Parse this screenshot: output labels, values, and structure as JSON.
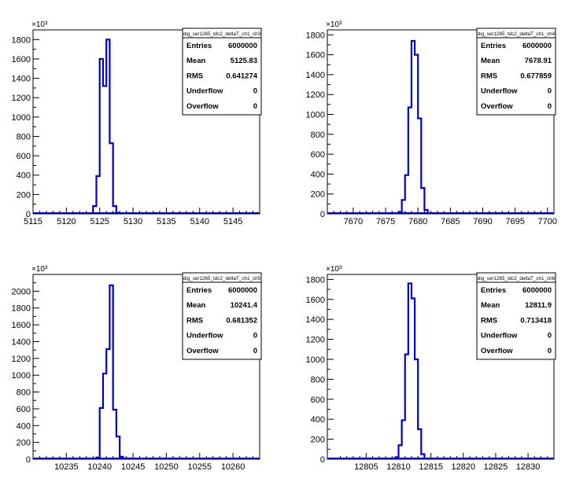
{
  "chart_data": [
    {
      "type": "bar",
      "title": "dig_ser1265_tdc2_deltaT_ch1_ch3",
      "exponent_label": "×10³",
      "xlim": [
        5115,
        5149
      ],
      "ylim": [
        0,
        1900
      ],
      "xticks": [
        5115,
        5120,
        5125,
        5130,
        5135,
        5140,
        5145
      ],
      "yticks": [
        0,
        200,
        400,
        600,
        800,
        1000,
        1200,
        1400,
        1600,
        1800
      ],
      "bins": [
        {
          "x": 5124.0,
          "y": 80
        },
        {
          "x": 5124.5,
          "y": 390
        },
        {
          "x": 5125.0,
          "y": 1600
        },
        {
          "x": 5125.5,
          "y": 1320
        },
        {
          "x": 5126.0,
          "y": 1800
        },
        {
          "x": 5126.5,
          "y": 730
        },
        {
          "x": 5127.0,
          "y": 80
        },
        {
          "x": 5127.5,
          "y": 10
        }
      ],
      "stats": [
        {
          "label": "Entries",
          "value": "6000000"
        },
        {
          "label": "Mean",
          "value": "5125.83"
        },
        {
          "label": "RMS",
          "value": "0.641274"
        },
        {
          "label": "Underflow",
          "value": "0"
        },
        {
          "label": "Overflow",
          "value": "0"
        }
      ]
    },
    {
      "type": "bar",
      "title": "dig_ser1265_tdc2_deltaT_ch1_ch4",
      "exponent_label": "×10³",
      "xlim": [
        7666,
        7701
      ],
      "ylim": [
        0,
        1850
      ],
      "xticks": [
        7670,
        7675,
        7680,
        7685,
        7690,
        7695,
        7700
      ],
      "yticks": [
        0,
        200,
        400,
        600,
        800,
        1000,
        1200,
        1400,
        1600,
        1800
      ],
      "bins": [
        {
          "x": 7677.0,
          "y": 20
        },
        {
          "x": 7677.5,
          "y": 140
        },
        {
          "x": 7678.0,
          "y": 390
        },
        {
          "x": 7678.5,
          "y": 1070
        },
        {
          "x": 7679.0,
          "y": 1740
        },
        {
          "x": 7679.5,
          "y": 1600
        },
        {
          "x": 7680.0,
          "y": 960
        },
        {
          "x": 7680.5,
          "y": 260
        },
        {
          "x": 7681.0,
          "y": 40
        }
      ],
      "stats": [
        {
          "label": "Entries",
          "value": "6000000"
        },
        {
          "label": "Mean",
          "value": "7678.91"
        },
        {
          "label": "RMS",
          "value": "0.677859"
        },
        {
          "label": "Underflow",
          "value": "0"
        },
        {
          "label": "Overflow",
          "value": "0"
        }
      ]
    },
    {
      "type": "bar",
      "title": "dig_ser1265_tdc2_deltaT_ch1_ch5",
      "exponent_label": "×10³",
      "xlim": [
        10230,
        10264
      ],
      "ylim": [
        0,
        2200
      ],
      "xticks": [
        10235,
        10240,
        10245,
        10250,
        10255,
        10260
      ],
      "yticks": [
        0,
        200,
        400,
        600,
        800,
        1000,
        1200,
        1400,
        1600,
        1800,
        2000
      ],
      "bins": [
        {
          "x": 10239.5,
          "y": 20
        },
        {
          "x": 10240.0,
          "y": 610
        },
        {
          "x": 10240.5,
          "y": 1020
        },
        {
          "x": 10241.0,
          "y": 1310
        },
        {
          "x": 10241.5,
          "y": 2070
        },
        {
          "x": 10242.0,
          "y": 590
        },
        {
          "x": 10242.5,
          "y": 270
        },
        {
          "x": 10243.0,
          "y": 30
        }
      ],
      "stats": [
        {
          "label": "Entries",
          "value": "6000000"
        },
        {
          "label": "Mean",
          "value": "10241.4"
        },
        {
          "label": "RMS",
          "value": "0.681352"
        },
        {
          "label": "Underflow",
          "value": "0"
        },
        {
          "label": "Overflow",
          "value": "0"
        }
      ]
    },
    {
      "type": "bar",
      "title": "dig_ser1265_tdc2_deltaT_ch1_ch6",
      "exponent_label": "×10³",
      "xlim": [
        12799,
        12834
      ],
      "ylim": [
        0,
        1850
      ],
      "xticks": [
        12805,
        12810,
        12815,
        12820,
        12825,
        12830
      ],
      "yticks": [
        0,
        200,
        400,
        600,
        800,
        1000,
        1200,
        1400,
        1600,
        1800
      ],
      "bins": [
        {
          "x": 12809.5,
          "y": 20
        },
        {
          "x": 12810.0,
          "y": 140
        },
        {
          "x": 12810.5,
          "y": 390
        },
        {
          "x": 12811.0,
          "y": 1050
        },
        {
          "x": 12811.5,
          "y": 1760
        },
        {
          "x": 12812.0,
          "y": 1610
        },
        {
          "x": 12812.5,
          "y": 1000
        },
        {
          "x": 12813.0,
          "y": 300
        },
        {
          "x": 12813.5,
          "y": 50
        }
      ],
      "stats": [
        {
          "label": "Entries",
          "value": "6000000"
        },
        {
          "label": "Mean",
          "value": "12811.9"
        },
        {
          "label": "RMS",
          "value": "0.713418"
        },
        {
          "label": "Underflow",
          "value": "0"
        },
        {
          "label": "Overflow",
          "value": "0"
        }
      ]
    }
  ]
}
